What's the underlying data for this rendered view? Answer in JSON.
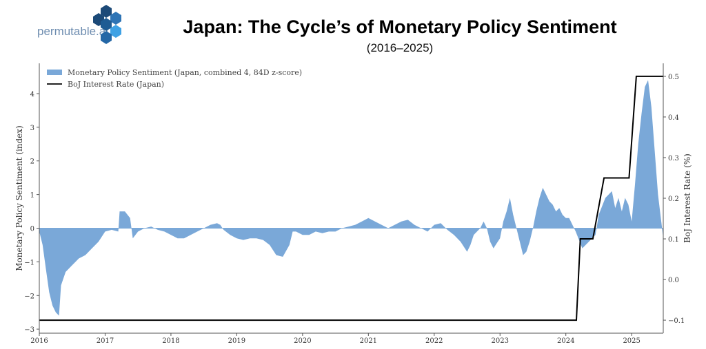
{
  "logo": {
    "text": "permutable.ai"
  },
  "chart_data": {
    "type": "area",
    "title": "Japan: The Cycle’s of Monetary Policy Sentiment",
    "subtitle": "(2016–2025)",
    "xlabel": "",
    "ylabel": "Monetary Policy Sentiment (index)",
    "y2label": "BoJ Interest Rate (%)",
    "xlim": [
      2016,
      2025.48
    ],
    "ylim": [
      -3.12,
      4.9
    ],
    "y2lim": [
      -0.132,
      0.532
    ],
    "xticks": [
      "2016",
      "2017",
      "2018",
      "2019",
      "2020",
      "2021",
      "2022",
      "2023",
      "2024",
      "2025"
    ],
    "yticks": [
      "−3",
      "−2",
      "−1",
      "0",
      "1",
      "2",
      "3",
      "4"
    ],
    "y2ticks": [
      "−0.1",
      "0.0",
      "0.1",
      "0.2",
      "0.3",
      "0.4",
      "0.5"
    ],
    "legend": {
      "placement": "top-left",
      "entries": [
        "Monetary Policy Sentiment (Japan, combined 4, 84D z-score)",
        "BoJ Interest Rate (Japan)"
      ]
    },
    "series": [
      {
        "name": "Monetary Policy Sentiment (Japan, combined 4, 84D z-score)",
        "type": "area",
        "color": "#7aa8d8",
        "x": [
          2016.0,
          2016.05,
          2016.1,
          2016.15,
          2016.2,
          2016.25,
          2016.3,
          2016.33,
          2016.4,
          2016.5,
          2016.6,
          2016.7,
          2016.8,
          2016.9,
          2017.0,
          2017.1,
          2017.2,
          2017.22,
          2017.3,
          2017.38,
          2017.42,
          2017.5,
          2017.6,
          2017.7,
          2017.8,
          2017.9,
          2018.0,
          2018.1,
          2018.2,
          2018.3,
          2018.4,
          2018.5,
          2018.6,
          2018.7,
          2018.75,
          2018.8,
          2018.9,
          2019.0,
          2019.1,
          2019.2,
          2019.3,
          2019.4,
          2019.5,
          2019.6,
          2019.7,
          2019.8,
          2019.85,
          2019.9,
          2020.0,
          2020.1,
          2020.2,
          2020.3,
          2020.4,
          2020.5,
          2020.6,
          2020.7,
          2020.8,
          2020.9,
          2021.0,
          2021.1,
          2021.2,
          2021.3,
          2021.4,
          2021.5,
          2021.6,
          2021.7,
          2021.8,
          2021.9,
          2022.0,
          2022.1,
          2022.2,
          2022.3,
          2022.4,
          2022.5,
          2022.55,
          2022.6,
          2022.7,
          2022.75,
          2022.8,
          2022.85,
          2022.9,
          2023.0,
          2023.05,
          2023.1,
          2023.15,
          2023.2,
          2023.25,
          2023.3,
          2023.35,
          2023.4,
          2023.45,
          2023.5,
          2023.55,
          2023.6,
          2023.65,
          2023.7,
          2023.75,
          2023.8,
          2023.85,
          2023.9,
          2023.95,
          2024.0,
          2024.05,
          2024.1,
          2024.15,
          2024.25,
          2024.35,
          2024.45,
          2024.5,
          2024.6,
          2024.7,
          2024.75,
          2024.8,
          2024.85,
          2024.9,
          2024.95,
          2025.0,
          2025.05,
          2025.1,
          2025.15,
          2025.2,
          2025.25,
          2025.3,
          2025.35,
          2025.4,
          2025.45,
          2025.48
        ],
        "y": [
          -0.1,
          -0.5,
          -1.2,
          -1.9,
          -2.3,
          -2.5,
          -2.6,
          -1.7,
          -1.3,
          -1.1,
          -0.9,
          -0.8,
          -0.6,
          -0.4,
          -0.1,
          -0.05,
          -0.1,
          0.5,
          0.5,
          0.3,
          -0.3,
          -0.1,
          0.0,
          0.05,
          -0.05,
          -0.1,
          -0.2,
          -0.3,
          -0.3,
          -0.2,
          -0.1,
          0.0,
          0.1,
          0.15,
          0.1,
          -0.05,
          -0.2,
          -0.3,
          -0.35,
          -0.3,
          -0.3,
          -0.35,
          -0.5,
          -0.8,
          -0.85,
          -0.5,
          -0.1,
          -0.1,
          -0.2,
          -0.2,
          -0.1,
          -0.15,
          -0.1,
          -0.1,
          0.0,
          0.05,
          0.1,
          0.2,
          0.3,
          0.2,
          0.1,
          0.0,
          0.1,
          0.2,
          0.25,
          0.1,
          0.0,
          -0.1,
          0.1,
          0.15,
          -0.05,
          -0.2,
          -0.4,
          -0.7,
          -0.5,
          -0.2,
          0.0,
          0.2,
          0.0,
          -0.4,
          -0.6,
          -0.3,
          0.2,
          0.5,
          0.9,
          0.4,
          0.0,
          -0.4,
          -0.8,
          -0.7,
          -0.4,
          0.0,
          0.5,
          0.9,
          1.2,
          1.0,
          0.8,
          0.7,
          0.5,
          0.6,
          0.4,
          0.3,
          0.3,
          0.1,
          -0.1,
          -0.6,
          -0.4,
          -0.2,
          0.4,
          0.9,
          1.1,
          0.6,
          0.9,
          0.5,
          0.9,
          0.7,
          0.2,
          1.3,
          2.5,
          3.4,
          4.2,
          4.4,
          3.6,
          2.3,
          1.0,
          0.2,
          -0.3
        ]
      },
      {
        "name": "BoJ Interest Rate (Japan)",
        "type": "line",
        "axis": "right",
        "color": "#000000",
        "x": [
          2016.0,
          2024.16,
          2024.22,
          2024.41,
          2024.58,
          2024.96,
          2025.07,
          2025.48
        ],
        "y": [
          -0.1,
          -0.1,
          0.1,
          0.1,
          0.25,
          0.25,
          0.5,
          0.5
        ]
      }
    ]
  }
}
